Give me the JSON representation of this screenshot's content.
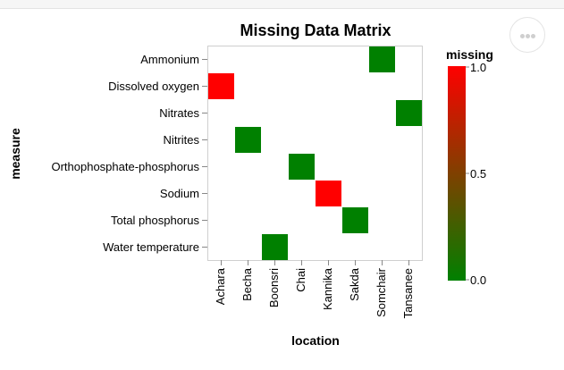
{
  "chart_data": {
    "type": "heatmap",
    "title": "Missing Data Matrix",
    "xlabel": "location",
    "ylabel": "measure",
    "x_categories": [
      "Achara",
      "Becha",
      "Boonsri",
      "Chai",
      "Kannika",
      "Sakda",
      "Somchair",
      "Tansanee"
    ],
    "y_categories": [
      "Ammonium",
      "Dissolved oxygen",
      "Nitrates",
      "Nitrites",
      "Orthophosphate-phosphorus",
      "Sodium",
      "Total phosphorus",
      "Water temperature"
    ],
    "cells": [
      {
        "x": "Somchair",
        "y": "Ammonium",
        "value": 0
      },
      {
        "x": "Achara",
        "y": "Dissolved oxygen",
        "value": 1
      },
      {
        "x": "Tansanee",
        "y": "Nitrates",
        "value": 0
      },
      {
        "x": "Becha",
        "y": "Nitrites",
        "value": 0
      },
      {
        "x": "Chai",
        "y": "Orthophosphate-phosphorus",
        "value": 0
      },
      {
        "x": "Kannika",
        "y": "Sodium",
        "value": 1
      },
      {
        "x": "Sakda",
        "y": "Total phosphorus",
        "value": 0
      },
      {
        "x": "Boonsri",
        "y": "Water temperature",
        "value": 0
      }
    ],
    "legend": {
      "title": "missing",
      "range": [
        0,
        1
      ],
      "ticks": [
        {
          "value": 1,
          "label": "1.0"
        },
        {
          "value": 0.5,
          "label": "0.5"
        },
        {
          "value": 0,
          "label": "0.0"
        }
      ],
      "color_low": "#008000",
      "color_high": "#ff0000",
      "placement": "right"
    },
    "grid": false
  }
}
